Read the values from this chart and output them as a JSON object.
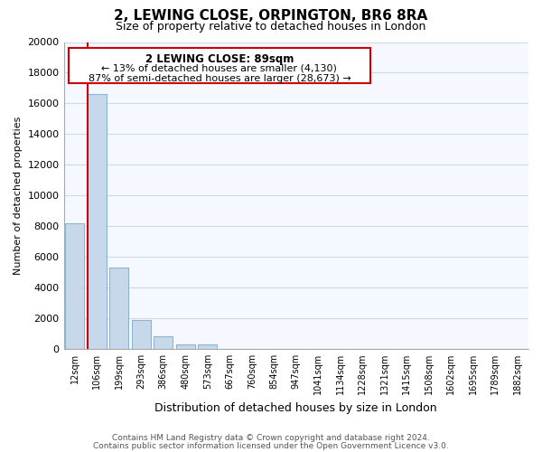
{
  "title": "2, LEWING CLOSE, ORPINGTON, BR6 8RA",
  "subtitle": "Size of property relative to detached houses in London",
  "xlabel": "Distribution of detached houses by size in London",
  "ylabel": "Number of detached properties",
  "bar_labels": [
    "12sqm",
    "106sqm",
    "199sqm",
    "293sqm",
    "386sqm",
    "480sqm",
    "573sqm",
    "667sqm",
    "760sqm",
    "854sqm",
    "947sqm",
    "1041sqm",
    "1134sqm",
    "1228sqm",
    "1321sqm",
    "1415sqm",
    "1508sqm",
    "1602sqm",
    "1695sqm",
    "1789sqm",
    "1882sqm"
  ],
  "bar_values": [
    8200,
    16600,
    5300,
    1850,
    800,
    300,
    270,
    0,
    0,
    0,
    0,
    0,
    0,
    0,
    0,
    0,
    0,
    0,
    0,
    0,
    0
  ],
  "bar_color": "#c8d8eb",
  "bar_edge_color": "#8cb4d2",
  "ylim": [
    0,
    20000
  ],
  "yticks": [
    0,
    2000,
    4000,
    6000,
    8000,
    10000,
    12000,
    14000,
    16000,
    18000,
    20000
  ],
  "annotation_title": "2 LEWING CLOSE: 89sqm",
  "annotation_line1": "← 13% of detached houses are smaller (4,130)",
  "annotation_line2": "87% of semi-detached houses are larger (28,673) →",
  "annotation_box_facecolor": "#ffffff",
  "annotation_border_color": "#cc0000",
  "property_line_color": "#cc0000",
  "footer_line1": "Contains HM Land Registry data © Crown copyright and database right 2024.",
  "footer_line2": "Contains public sector information licensed under the Open Government Licence v3.0.",
  "bg_color": "#ffffff",
  "plot_bg_color": "#f5f8ff",
  "grid_color": "#d0d8e8"
}
